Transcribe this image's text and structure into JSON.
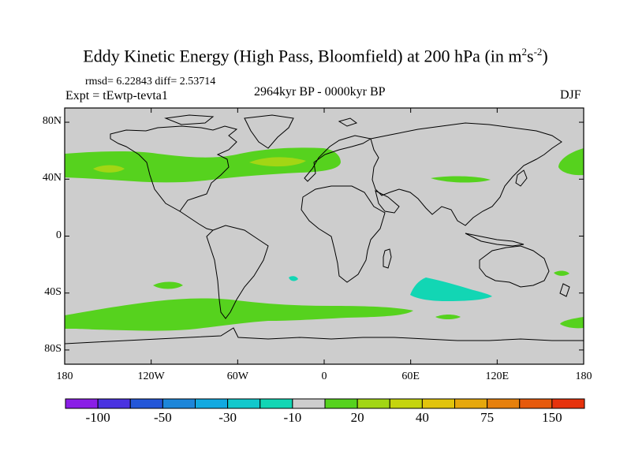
{
  "title": {
    "main": "Eddy Kinetic Energy (High Pass, Bloomfield) at 200 hPa (in m",
    "sup1": "2",
    "mid": "s",
    "sup2": "-2",
    "close": ")"
  },
  "stats": "rmsd= 6.22843 diff= 2.53714",
  "experiment": "Expt = tEwtp-tevta1",
  "period": "2964kyr BP - 0000kyr BP",
  "season": "DJF",
  "axes": {
    "x_ticks": [
      {
        "lon": -180,
        "label": "180"
      },
      {
        "lon": -120,
        "label": "120W"
      },
      {
        "lon": -60,
        "label": "60W"
      },
      {
        "lon": 0,
        "label": "0"
      },
      {
        "lon": 60,
        "label": "60E"
      },
      {
        "lon": 120,
        "label": "120E"
      },
      {
        "lon": 180,
        "label": "180"
      }
    ],
    "y_ticks": [
      {
        "lat": 80,
        "label": "80N"
      },
      {
        "lat": 40,
        "label": "40N"
      },
      {
        "lat": 0,
        "label": "0"
      },
      {
        "lat": -40,
        "label": "40S"
      },
      {
        "lat": -80,
        "label": "80S"
      }
    ],
    "lon_range": [
      -180,
      180
    ],
    "lat_range": [
      -90,
      90
    ]
  },
  "colorbar": {
    "colors": [
      "#8a1ee6",
      "#4a32e0",
      "#2356d8",
      "#1d86d9",
      "#12a9e0",
      "#12c8cc",
      "#12d6b4",
      "#cdcdcd",
      "#56d21e",
      "#a2d614",
      "#c5d40e",
      "#e1c40c",
      "#e6a80c",
      "#e6800c",
      "#e65a0c",
      "#e6320c"
    ],
    "labels": [
      {
        "boundary": 1,
        "text": "-100"
      },
      {
        "boundary": 3,
        "text": "-50"
      },
      {
        "boundary": 5,
        "text": "-30"
      },
      {
        "boundary": 7,
        "text": "-10"
      },
      {
        "boundary": 9,
        "text": "20"
      },
      {
        "boundary": 11,
        "text": "40"
      },
      {
        "boundary": 13,
        "text": "75"
      },
      {
        "boundary": 15,
        "text": "150"
      }
    ]
  },
  "field": {
    "background_color": "#cdcdcd",
    "positive_color": "#56d21e",
    "strong_positive_color": "#a2d614",
    "negative_color": "#12d6b4",
    "regions": [
      {
        "name": "north-pacific-storm-track",
        "level": "20 to 30",
        "lon": [
          -180,
          -150
        ],
        "lat": [
          44,
          53
        ]
      },
      {
        "name": "north-pacific-storm-track-east",
        "level": "20 to 30",
        "lon": [
          -150,
          -90
        ],
        "lat": [
          38,
          56
        ]
      },
      {
        "name": "north-atlantic-storm-track",
        "level": "20 to 30",
        "lon": [
          -80,
          15
        ],
        "lat": [
          34,
          60
        ]
      },
      {
        "name": "asian-jet-region",
        "level": "20 to 30",
        "lon": [
          75,
          115
        ],
        "lat": [
          37,
          41
        ]
      },
      {
        "name": "north-pacific-west",
        "level": "20 to 30",
        "lon": [
          160,
          180
        ],
        "lat": [
          38,
          53
        ]
      },
      {
        "name": "southern-ocean-band",
        "level": "20 to 30",
        "lon": [
          -180,
          60
        ],
        "lat": [
          -65,
          -48
        ]
      },
      {
        "name": "south-indian-negative",
        "level": "-10 to -20",
        "lon": [
          60,
          100
        ],
        "lat": [
          -48,
          -33
        ]
      },
      {
        "name": "south-pacific-negative-small",
        "level": "-10 to -20",
        "lon": [
          -25,
          -20
        ],
        "lat": [
          -33,
          -30
        ]
      }
    ]
  }
}
